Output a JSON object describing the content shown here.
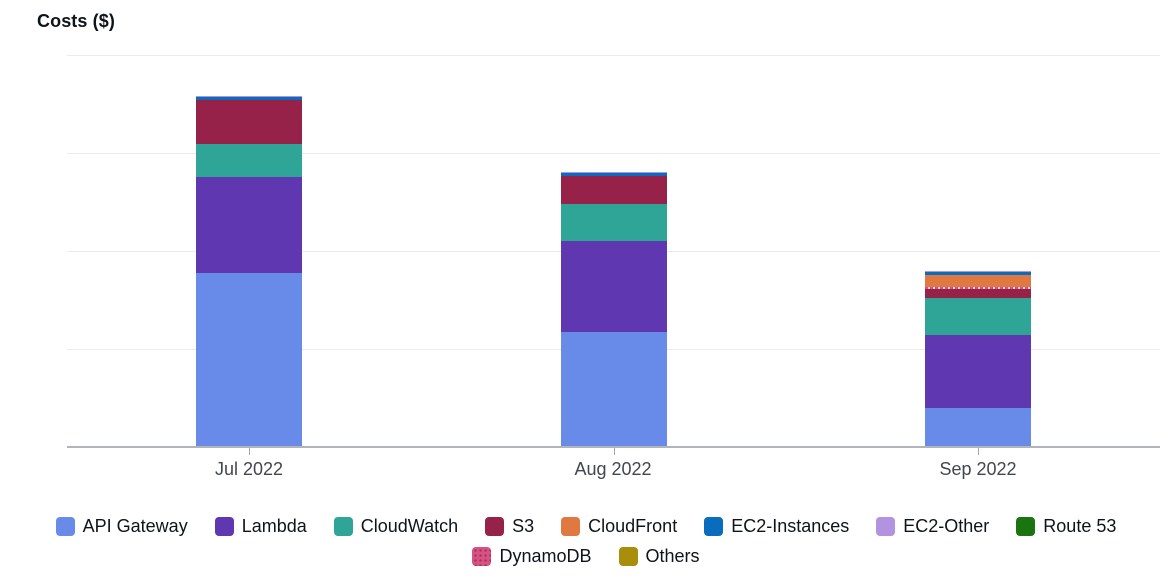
{
  "chart_data": {
    "type": "stacked-bar",
    "title": "Costs ($)",
    "categories": [
      "Jul 2022",
      "Aug 2022",
      "Sep 2022"
    ],
    "y_axis": {
      "labels_visible": false,
      "gridline_count": 4,
      "note": "values estimated in gridline units; 1 unit = one gridline interval",
      "ylim": [
        0,
        4
      ]
    },
    "grid": "horizontal-light-gray",
    "legend_position": "bottom",
    "stack_order_bottom_to_top": [
      "API Gateway",
      "Lambda",
      "CloudWatch",
      "S3",
      "DynamoDB",
      "CloudFront",
      "EC2-Instances",
      "EC2-Other",
      "Route 53",
      "Others"
    ],
    "series": [
      {
        "name": "API Gateway",
        "color": "#688ae8",
        "values": [
          1.77,
          1.16,
          0.39
        ]
      },
      {
        "name": "Lambda",
        "color": "#5f37b0",
        "values": [
          0.98,
          0.93,
          0.74
        ]
      },
      {
        "name": "CloudWatch",
        "color": "#2fa597",
        "values": [
          0.34,
          0.38,
          0.38
        ]
      },
      {
        "name": "S3",
        "color": "#962249",
        "values": [
          0.45,
          0.29,
          0.09
        ]
      },
      {
        "name": "DynamoDB",
        "color": "#d65283",
        "values": [
          0,
          0,
          0.02
        ],
        "pattern": "dotted"
      },
      {
        "name": "CloudFront",
        "color": "#e07941",
        "values": [
          0,
          0,
          0.12
        ]
      },
      {
        "name": "EC2-Instances",
        "color": "#0a6cbd",
        "values": [
          0.03,
          0.03,
          0.03
        ]
      },
      {
        "name": "EC2-Other",
        "color": "#b392e0",
        "values": [
          0.015,
          0.015,
          0.01
        ]
      },
      {
        "name": "Route 53",
        "color": "#1a7410",
        "values": [
          0,
          0,
          0
        ]
      },
      {
        "name": "Others",
        "color": "#a98e0c",
        "values": [
          0,
          0,
          0
        ]
      }
    ],
    "legend_rows": [
      [
        "API Gateway",
        "Lambda",
        "CloudWatch",
        "S3",
        "CloudFront",
        "EC2-Instances",
        "EC2-Other",
        "Route 53"
      ],
      [
        "DynamoDB",
        "Others"
      ]
    ]
  }
}
